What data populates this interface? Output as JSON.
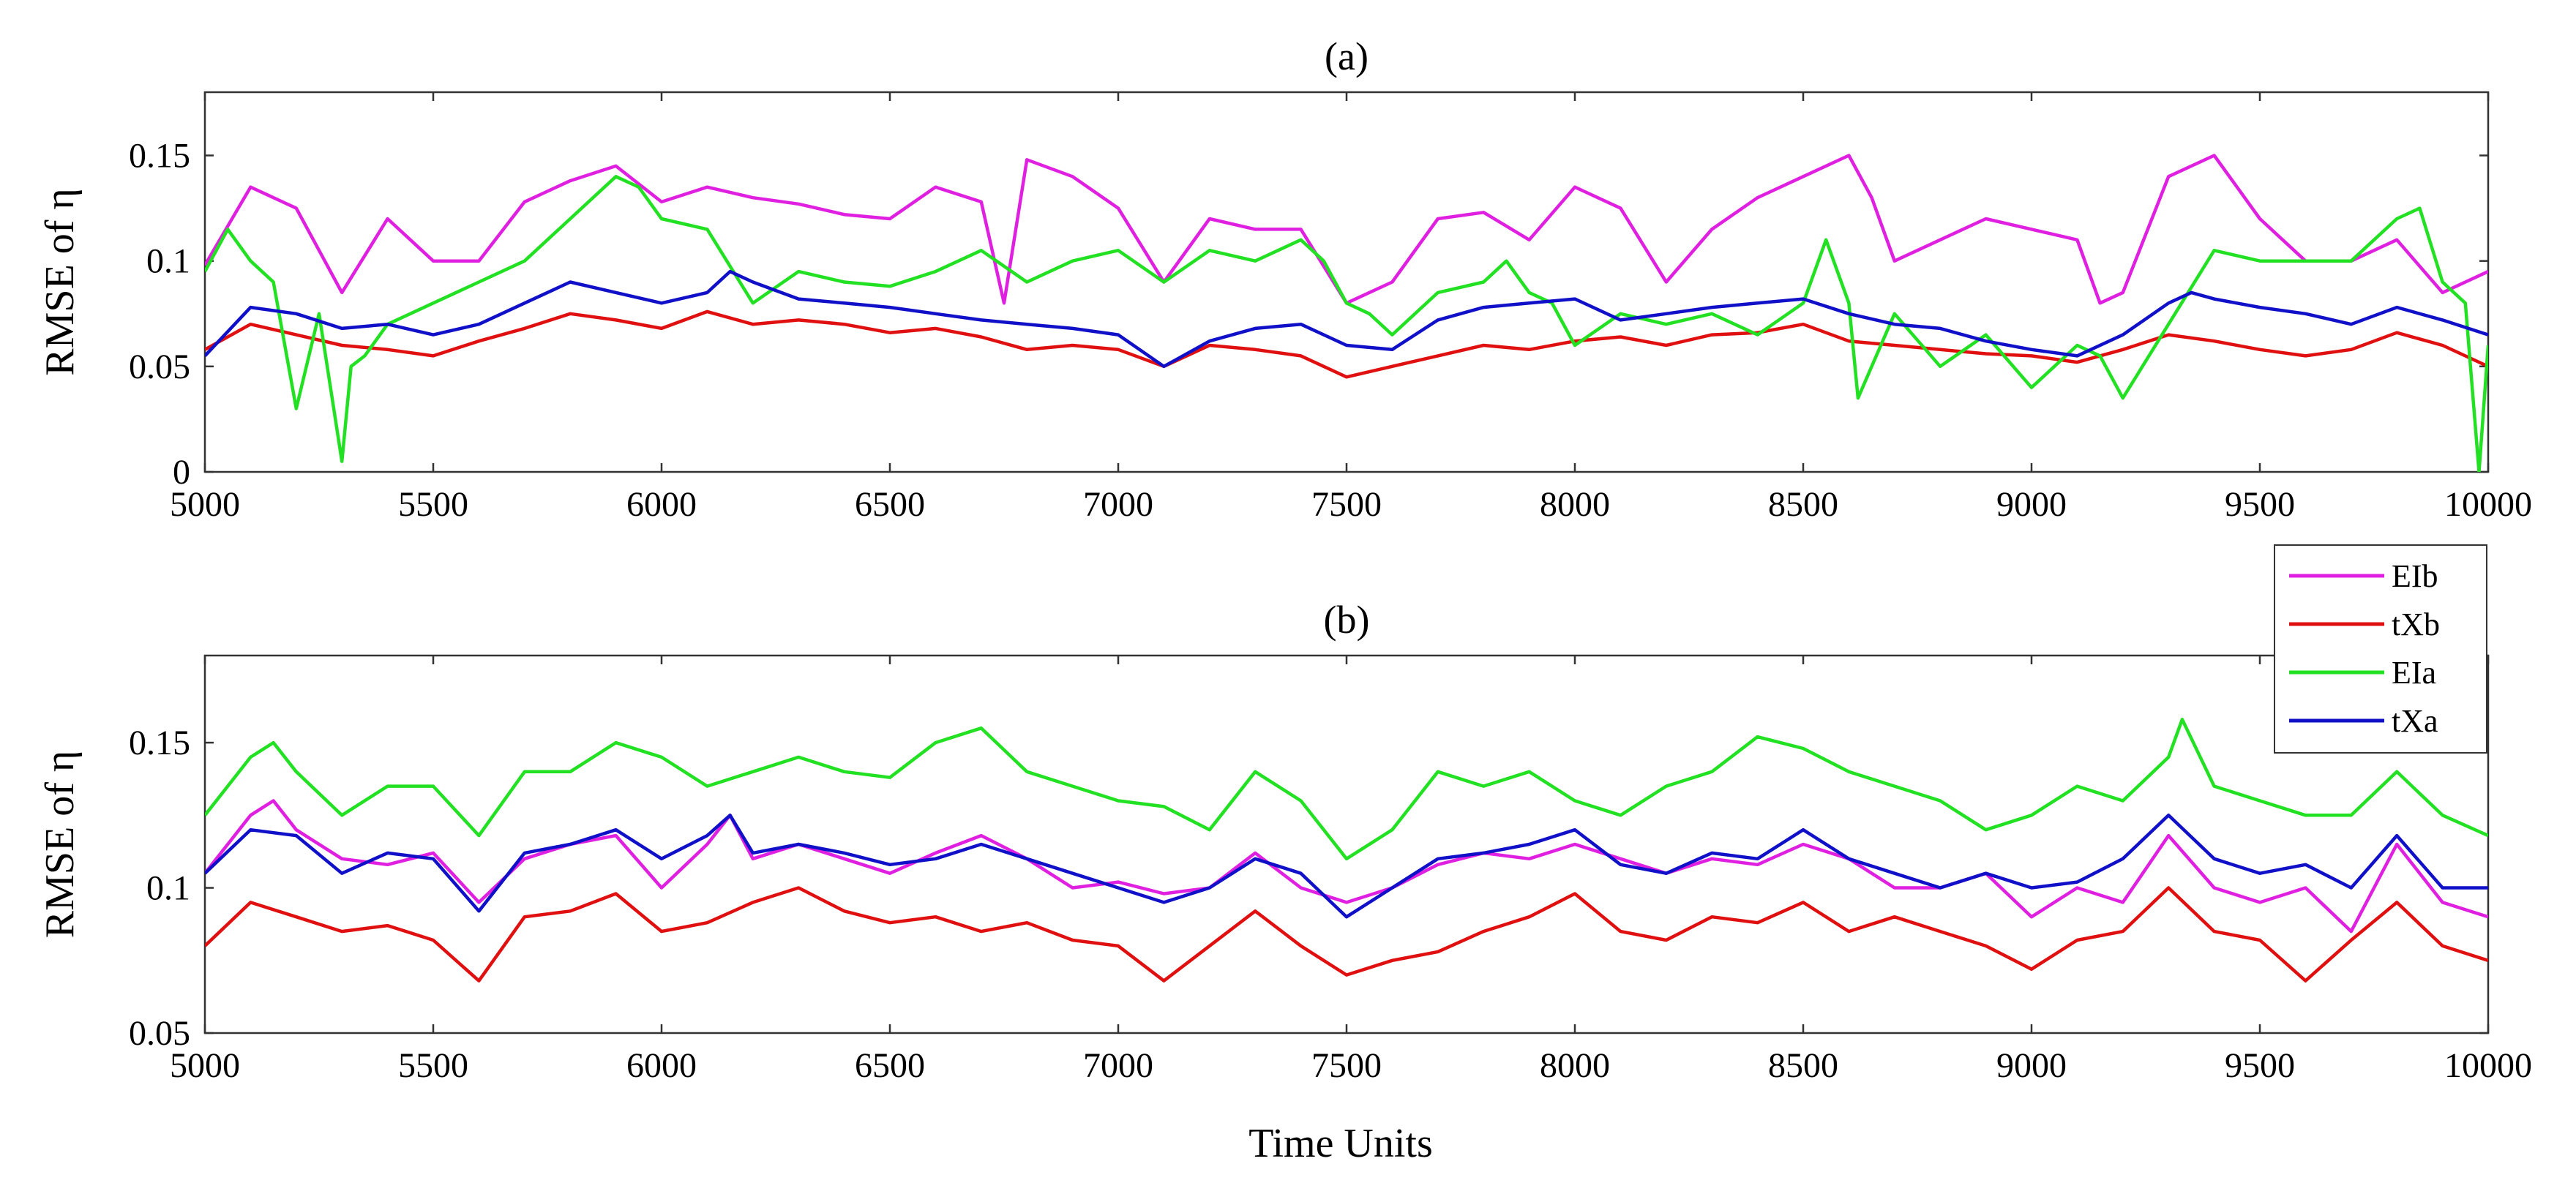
{
  "chart_data": [
    {
      "type": "line",
      "title": "(a)",
      "xlabel": "",
      "ylabel": "RMSE of η",
      "xlim": [
        5000,
        10000
      ],
      "ylim": [
        0,
        0.18
      ],
      "xticks": [
        5000,
        5500,
        6000,
        6500,
        7000,
        7500,
        8000,
        8500,
        9000,
        9500,
        10000
      ],
      "xtick_labels": [
        "5000",
        "5500",
        "6000",
        "6500",
        "7000",
        "7500",
        "8000",
        "8500",
        "9000",
        "9500",
        "10000"
      ],
      "yticks": [
        0,
        0.05,
        0.1,
        0.15
      ],
      "ytick_labels": [
        "0",
        "0.05",
        "0.1",
        "0.15"
      ],
      "series": [
        {
          "name": "EIb",
          "color": "#E020E0",
          "x": [
            5000,
            5100,
            5200,
            5300,
            5400,
            5500,
            5600,
            5700,
            5800,
            5900,
            6000,
            6100,
            6200,
            6300,
            6400,
            6500,
            6600,
            6700,
            6750,
            6800,
            6900,
            7000,
            7100,
            7200,
            7300,
            7400,
            7500,
            7600,
            7700,
            7800,
            7900,
            8000,
            8100,
            8200,
            8300,
            8400,
            8500,
            8600,
            8650,
            8700,
            8800,
            8900,
            9000,
            9100,
            9150,
            9200,
            9300,
            9400,
            9450,
            9500,
            9600,
            9700,
            9800,
            9900,
            10000
          ],
          "values": [
            0.098,
            0.135,
            0.125,
            0.085,
            0.12,
            0.1,
            0.1,
            0.128,
            0.138,
            0.145,
            0.128,
            0.135,
            0.13,
            0.127,
            0.122,
            0.12,
            0.135,
            0.128,
            0.08,
            0.148,
            0.14,
            0.125,
            0.09,
            0.12,
            0.115,
            0.115,
            0.08,
            0.09,
            0.12,
            0.123,
            0.11,
            0.135,
            0.125,
            0.09,
            0.115,
            0.13,
            0.14,
            0.15,
            0.13,
            0.1,
            0.11,
            0.12,
            0.115,
            0.11,
            0.08,
            0.085,
            0.14,
            0.15,
            0.135,
            0.12,
            0.1,
            0.1,
            0.11,
            0.085,
            0.095
          ]
        },
        {
          "name": "tXb",
          "color": "#E01010",
          "x": [
            5000,
            5100,
            5200,
            5300,
            5400,
            5500,
            5600,
            5700,
            5800,
            5900,
            6000,
            6100,
            6200,
            6300,
            6400,
            6500,
            6600,
            6700,
            6800,
            6900,
            7000,
            7100,
            7200,
            7300,
            7400,
            7500,
            7600,
            7700,
            7800,
            7900,
            8000,
            8100,
            8200,
            8300,
            8400,
            8500,
            8600,
            8700,
            8800,
            8900,
            9000,
            9100,
            9200,
            9300,
            9400,
            9500,
            9600,
            9700,
            9800,
            9900,
            10000
          ],
          "values": [
            0.058,
            0.07,
            0.065,
            0.06,
            0.058,
            0.055,
            0.062,
            0.068,
            0.075,
            0.072,
            0.068,
            0.076,
            0.07,
            0.072,
            0.07,
            0.066,
            0.068,
            0.064,
            0.058,
            0.06,
            0.058,
            0.05,
            0.06,
            0.058,
            0.055,
            0.045,
            0.05,
            0.055,
            0.06,
            0.058,
            0.062,
            0.064,
            0.06,
            0.065,
            0.066,
            0.07,
            0.062,
            0.06,
            0.058,
            0.056,
            0.055,
            0.052,
            0.058,
            0.065,
            0.062,
            0.058,
            0.055,
            0.058,
            0.066,
            0.06,
            0.05
          ]
        },
        {
          "name": "EIa",
          "color": "#22E022",
          "x": [
            5000,
            5050,
            5100,
            5150,
            5200,
            5250,
            5300,
            5320,
            5350,
            5400,
            5500,
            5600,
            5700,
            5800,
            5900,
            5950,
            6000,
            6100,
            6200,
            6300,
            6400,
            6500,
            6600,
            6700,
            6800,
            6900,
            7000,
            7100,
            7200,
            7300,
            7400,
            7450,
            7500,
            7550,
            7600,
            7700,
            7800,
            7850,
            7900,
            7950,
            8000,
            8100,
            8200,
            8300,
            8400,
            8500,
            8550,
            8600,
            8620,
            8700,
            8800,
            8900,
            9000,
            9100,
            9150,
            9200,
            9300,
            9400,
            9500,
            9600,
            9700,
            9800,
            9850,
            9900,
            9950,
            9980,
            10000
          ],
          "values": [
            0.095,
            0.115,
            0.1,
            0.09,
            0.03,
            0.075,
            0.005,
            0.05,
            0.055,
            0.07,
            0.08,
            0.09,
            0.1,
            0.12,
            0.14,
            0.135,
            0.12,
            0.115,
            0.08,
            0.095,
            0.09,
            0.088,
            0.095,
            0.105,
            0.09,
            0.1,
            0.105,
            0.09,
            0.105,
            0.1,
            0.11,
            0.1,
            0.08,
            0.075,
            0.065,
            0.085,
            0.09,
            0.1,
            0.085,
            0.08,
            0.06,
            0.075,
            0.07,
            0.075,
            0.065,
            0.08,
            0.11,
            0.08,
            0.035,
            0.075,
            0.05,
            0.065,
            0.04,
            0.06,
            0.055,
            0.035,
            0.07,
            0.105,
            0.1,
            0.1,
            0.1,
            0.12,
            0.125,
            0.09,
            0.08,
            0.0,
            0.06
          ]
        },
        {
          "name": "tXa",
          "color": "#1010C8",
          "x": [
            5000,
            5100,
            5200,
            5300,
            5400,
            5500,
            5600,
            5700,
            5800,
            5900,
            6000,
            6100,
            6150,
            6200,
            6300,
            6400,
            6500,
            6600,
            6700,
            6800,
            6900,
            7000,
            7100,
            7200,
            7300,
            7400,
            7500,
            7600,
            7700,
            7800,
            7900,
            8000,
            8100,
            8200,
            8300,
            8400,
            8500,
            8600,
            8700,
            8800,
            8900,
            9000,
            9100,
            9200,
            9300,
            9350,
            9400,
            9500,
            9600,
            9700,
            9800,
            9900,
            10000
          ],
          "values": [
            0.055,
            0.078,
            0.075,
            0.068,
            0.07,
            0.065,
            0.07,
            0.08,
            0.09,
            0.085,
            0.08,
            0.085,
            0.095,
            0.09,
            0.082,
            0.08,
            0.078,
            0.075,
            0.072,
            0.07,
            0.068,
            0.065,
            0.05,
            0.062,
            0.068,
            0.07,
            0.06,
            0.058,
            0.072,
            0.078,
            0.08,
            0.082,
            0.072,
            0.075,
            0.078,
            0.08,
            0.082,
            0.075,
            0.07,
            0.068,
            0.062,
            0.058,
            0.055,
            0.065,
            0.08,
            0.085,
            0.082,
            0.078,
            0.075,
            0.07,
            0.078,
            0.072,
            0.065
          ]
        }
      ]
    },
    {
      "type": "line",
      "title": "(b)",
      "xlabel": "Time Units",
      "ylabel": "RMSE of η",
      "xlim": [
        5000,
        10000
      ],
      "ylim": [
        0.05,
        0.18
      ],
      "xticks": [
        5000,
        5500,
        6000,
        6500,
        7000,
        7500,
        8000,
        8500,
        9000,
        9500,
        10000
      ],
      "xtick_labels": [
        "5000",
        "5500",
        "6000",
        "6500",
        "7000",
        "7500",
        "8000",
        "8500",
        "9000",
        "9500",
        "10000"
      ],
      "yticks": [
        0.05,
        0.1,
        0.15
      ],
      "ytick_labels": [
        "0.05",
        "0.1",
        "0.15"
      ],
      "series": [
        {
          "name": "EIb",
          "color": "#E020E0",
          "x": [
            5000,
            5100,
            5150,
            5200,
            5300,
            5400,
            5500,
            5600,
            5700,
            5800,
            5900,
            6000,
            6100,
            6150,
            6200,
            6300,
            6400,
            6500,
            6600,
            6700,
            6800,
            6900,
            7000,
            7100,
            7200,
            7300,
            7400,
            7500,
            7600,
            7700,
            7800,
            7900,
            8000,
            8100,
            8200,
            8300,
            8400,
            8500,
            8600,
            8700,
            8800,
            8900,
            9000,
            9100,
            9200,
            9300,
            9400,
            9500,
            9600,
            9700,
            9800,
            9900,
            10000
          ],
          "values": [
            0.105,
            0.125,
            0.13,
            0.12,
            0.11,
            0.108,
            0.112,
            0.095,
            0.11,
            0.115,
            0.118,
            0.1,
            0.115,
            0.125,
            0.11,
            0.115,
            0.11,
            0.105,
            0.112,
            0.118,
            0.11,
            0.1,
            0.102,
            0.098,
            0.1,
            0.112,
            0.1,
            0.095,
            0.1,
            0.108,
            0.112,
            0.11,
            0.115,
            0.11,
            0.105,
            0.11,
            0.108,
            0.115,
            0.11,
            0.1,
            0.1,
            0.105,
            0.09,
            0.1,
            0.095,
            0.118,
            0.1,
            0.095,
            0.1,
            0.085,
            0.115,
            0.095,
            0.09
          ]
        },
        {
          "name": "tXb",
          "color": "#E01010",
          "x": [
            5000,
            5100,
            5200,
            5300,
            5400,
            5500,
            5600,
            5700,
            5800,
            5900,
            6000,
            6100,
            6200,
            6300,
            6400,
            6500,
            6600,
            6700,
            6800,
            6900,
            7000,
            7100,
            7200,
            7300,
            7400,
            7500,
            7600,
            7700,
            7800,
            7900,
            8000,
            8100,
            8200,
            8300,
            8400,
            8500,
            8600,
            8700,
            8800,
            8900,
            9000,
            9100,
            9200,
            9300,
            9400,
            9500,
            9600,
            9700,
            9800,
            9900,
            10000
          ],
          "values": [
            0.08,
            0.095,
            0.09,
            0.085,
            0.087,
            0.082,
            0.068,
            0.09,
            0.092,
            0.098,
            0.085,
            0.088,
            0.095,
            0.1,
            0.092,
            0.088,
            0.09,
            0.085,
            0.088,
            0.082,
            0.08,
            0.068,
            0.08,
            0.092,
            0.08,
            0.07,
            0.075,
            0.078,
            0.085,
            0.09,
            0.098,
            0.085,
            0.082,
            0.09,
            0.088,
            0.095,
            0.085,
            0.09,
            0.085,
            0.08,
            0.072,
            0.082,
            0.085,
            0.1,
            0.085,
            0.082,
            0.068,
            0.082,
            0.095,
            0.08,
            0.075
          ]
        },
        {
          "name": "EIa",
          "color": "#22E022",
          "x": [
            5000,
            5100,
            5150,
            5200,
            5300,
            5400,
            5500,
            5600,
            5700,
            5800,
            5900,
            6000,
            6100,
            6200,
            6300,
            6400,
            6500,
            6600,
            6700,
            6800,
            6900,
            7000,
            7100,
            7200,
            7300,
            7400,
            7500,
            7600,
            7700,
            7800,
            7900,
            8000,
            8100,
            8200,
            8300,
            8400,
            8500,
            8600,
            8700,
            8800,
            8900,
            9000,
            9100,
            9200,
            9300,
            9330,
            9400,
            9500,
            9600,
            9700,
            9800,
            9900,
            10000
          ],
          "values": [
            0.125,
            0.145,
            0.15,
            0.14,
            0.125,
            0.135,
            0.135,
            0.118,
            0.14,
            0.14,
            0.15,
            0.145,
            0.135,
            0.14,
            0.145,
            0.14,
            0.138,
            0.15,
            0.155,
            0.14,
            0.135,
            0.13,
            0.128,
            0.12,
            0.14,
            0.13,
            0.11,
            0.12,
            0.14,
            0.135,
            0.14,
            0.13,
            0.125,
            0.135,
            0.14,
            0.152,
            0.148,
            0.14,
            0.135,
            0.13,
            0.12,
            0.125,
            0.135,
            0.13,
            0.145,
            0.158,
            0.135,
            0.13,
            0.125,
            0.125,
            0.14,
            0.125,
            0.118
          ]
        },
        {
          "name": "tXa",
          "color": "#1010C8",
          "x": [
            5000,
            5100,
            5200,
            5300,
            5400,
            5500,
            5600,
            5700,
            5800,
            5900,
            6000,
            6100,
            6150,
            6200,
            6300,
            6400,
            6500,
            6600,
            6700,
            6800,
            6900,
            7000,
            7100,
            7200,
            7300,
            7400,
            7500,
            7600,
            7700,
            7800,
            7900,
            8000,
            8100,
            8200,
            8300,
            8400,
            8500,
            8600,
            8700,
            8800,
            8900,
            9000,
            9100,
            9200,
            9300,
            9400,
            9500,
            9600,
            9700,
            9800,
            9900,
            10000
          ],
          "values": [
            0.105,
            0.12,
            0.118,
            0.105,
            0.112,
            0.11,
            0.092,
            0.112,
            0.115,
            0.12,
            0.11,
            0.118,
            0.125,
            0.112,
            0.115,
            0.112,
            0.108,
            0.11,
            0.115,
            0.11,
            0.105,
            0.1,
            0.095,
            0.1,
            0.11,
            0.105,
            0.09,
            0.1,
            0.11,
            0.112,
            0.115,
            0.12,
            0.108,
            0.105,
            0.112,
            0.11,
            0.12,
            0.11,
            0.105,
            0.1,
            0.105,
            0.1,
            0.102,
            0.11,
            0.125,
            0.11,
            0.105,
            0.108,
            0.1,
            0.118,
            0.1,
            0.1
          ]
        }
      ]
    }
  ]
}
